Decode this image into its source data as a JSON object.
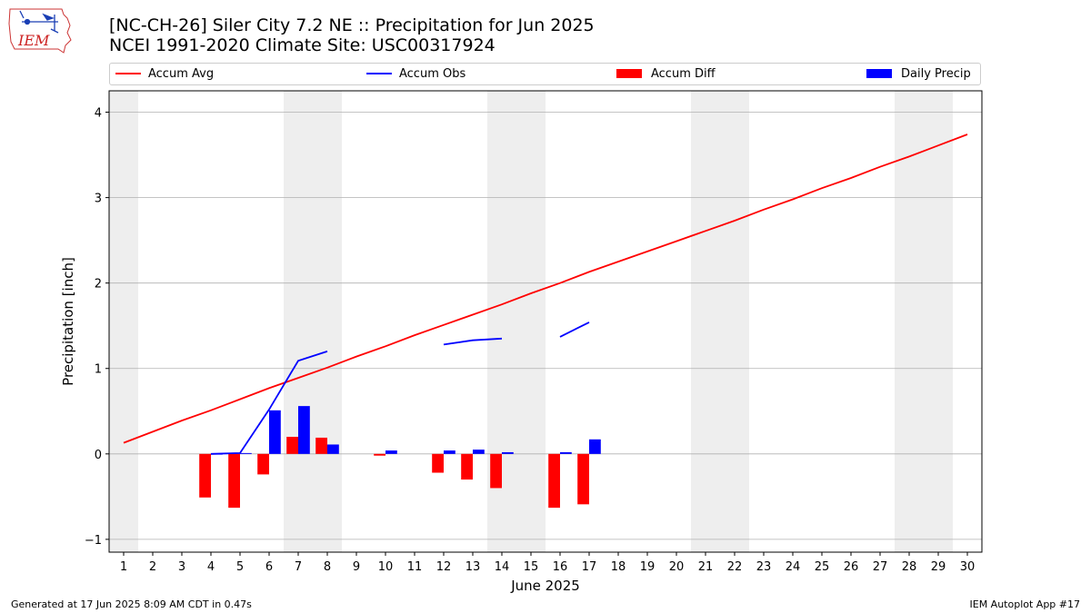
{
  "header": {
    "title_line1": "[NC-CH-26] Siler City 7.2 NE :: Precipitation for Jun 2025",
    "title_line2": "NCEI 1991-2020 Climate Site: USC00317924"
  },
  "logo": {
    "text": "IEM"
  },
  "footer": {
    "left": "Generated at 17 Jun 2025 8:09 AM CDT in 0.47s",
    "right": "IEM Autoplot App #17"
  },
  "colors": {
    "accum_avg": "#ff0000",
    "accum_obs": "#0000ff",
    "accum_diff": "#ff0000",
    "daily_precip": "#0000ff",
    "weekend_shade": "#eeeeee",
    "grid": "#b0b0b0"
  },
  "chart_data": {
    "type": "bar",
    "xlabel": "June 2025",
    "ylabel": "Precipitation [inch]",
    "xlim": [
      0.5,
      30.5
    ],
    "ylim": [
      -1.15,
      4.25
    ],
    "yticks": [
      -1,
      0,
      1,
      2,
      3,
      4
    ],
    "x": [
      1,
      2,
      3,
      4,
      5,
      6,
      7,
      8,
      9,
      10,
      11,
      12,
      13,
      14,
      15,
      16,
      17,
      18,
      19,
      20,
      21,
      22,
      23,
      24,
      25,
      26,
      27,
      28,
      29,
      30
    ],
    "x_tick_labels": [
      "1",
      "2",
      "3",
      "4",
      "5",
      "6",
      "7",
      "8",
      "9",
      "10",
      "11",
      "12",
      "13",
      "14",
      "15",
      "16",
      "17",
      "18",
      "19",
      "20",
      "21",
      "22",
      "23",
      "24",
      "25",
      "26",
      "27",
      "28",
      "29",
      "30"
    ],
    "weekend_days": [
      1,
      7,
      8,
      14,
      15,
      21,
      22,
      28,
      29
    ],
    "grid": "y",
    "legend": {
      "placement": "top",
      "entries": [
        "Accum Avg",
        "Accum Obs",
        "Accum Diff",
        "Daily Precip"
      ]
    },
    "series": [
      {
        "name": "Accum Avg",
        "kind": "line",
        "values": [
          0.13,
          0.26,
          0.39,
          0.51,
          0.64,
          0.77,
          0.89,
          1.01,
          1.14,
          1.26,
          1.39,
          1.51,
          1.63,
          1.75,
          1.88,
          2.0,
          2.13,
          2.25,
          2.37,
          2.49,
          2.61,
          2.73,
          2.86,
          2.98,
          3.11,
          3.23,
          3.36,
          3.48,
          3.61,
          3.74
        ]
      },
      {
        "name": "Accum Obs",
        "kind": "line",
        "values": [
          null,
          null,
          null,
          0.0,
          0.01,
          0.52,
          1.09,
          1.2,
          null,
          null,
          null,
          1.28,
          1.33,
          1.35,
          null,
          1.37,
          1.54,
          null,
          null,
          null,
          null,
          null,
          null,
          null,
          null,
          null,
          null,
          null,
          null,
          null
        ]
      },
      {
        "name": "Accum Diff",
        "kind": "bar",
        "values": [
          null,
          null,
          null,
          -0.51,
          -0.63,
          -0.24,
          0.2,
          0.19,
          null,
          -0.02,
          null,
          -0.22,
          -0.3,
          -0.4,
          null,
          -0.63,
          -0.59,
          null,
          null,
          null,
          null,
          null,
          null,
          null,
          null,
          null,
          null,
          null,
          null,
          null
        ]
      },
      {
        "name": "Daily Precip",
        "kind": "bar",
        "values": [
          null,
          null,
          null,
          0.0,
          0.01,
          0.51,
          0.56,
          0.11,
          null,
          0.04,
          null,
          0.04,
          0.05,
          0.02,
          null,
          0.02,
          0.17,
          null,
          null,
          null,
          null,
          null,
          null,
          null,
          null,
          null,
          null,
          null,
          null,
          null
        ]
      }
    ]
  }
}
